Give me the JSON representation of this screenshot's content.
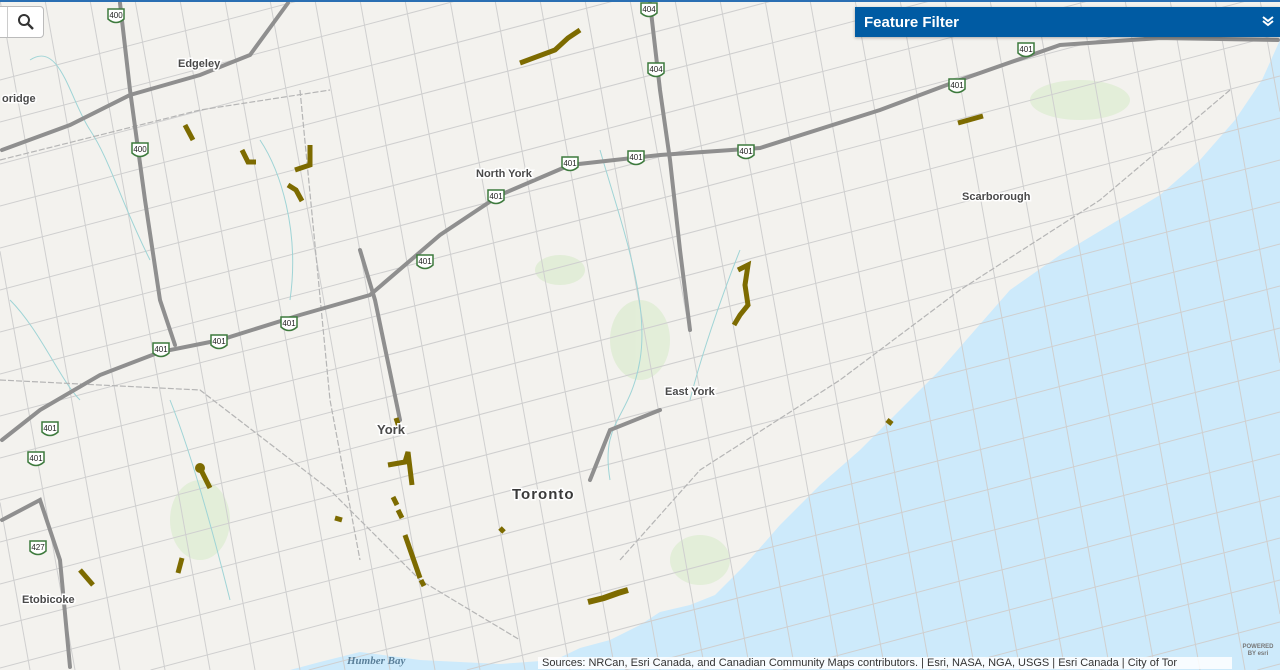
{
  "search": {
    "icon": "search-icon"
  },
  "feature_filter": {
    "title": "Feature Filter",
    "icon": "double-chevron-down-icon"
  },
  "attribution": "Sources: NRCan, Esri Canada, and Canadian Community Maps contributors. | Esri, NASA, NGA, USGS | Esri Canada | City of Tor",
  "powered_by": "POWERED BY esri",
  "places": {
    "edgeley": "Edgeley",
    "bridge": "oridge",
    "north_york": "North York",
    "scarborough": "Scarborough",
    "york": "York",
    "east_york": "East York",
    "toronto": "Toronto",
    "etobicoke": "Etobicoke",
    "humber_bay": "Humber Bay"
  },
  "highways": [
    "400",
    "404",
    "401",
    "427"
  ],
  "colors": {
    "accent": "#005ba3",
    "feature": "#7d6b00",
    "water": "#cdeafb",
    "land": "#f3f2ee",
    "highway": "#8f8f8f"
  }
}
